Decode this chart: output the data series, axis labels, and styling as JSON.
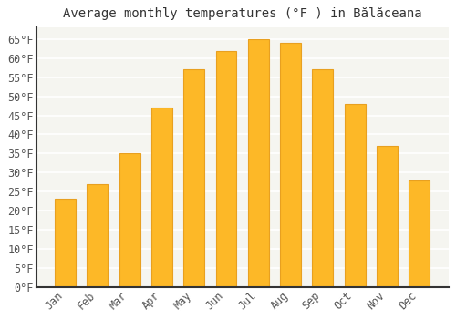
{
  "title": "Average monthly temperatures (°F ) in Bălăceana",
  "months": [
    "Jan",
    "Feb",
    "Mar",
    "Apr",
    "May",
    "Jun",
    "Jul",
    "Aug",
    "Sep",
    "Oct",
    "Nov",
    "Dec"
  ],
  "values": [
    23,
    27,
    35,
    47,
    57,
    62,
    65,
    64,
    57,
    48,
    37,
    28
  ],
  "bar_color": "#FDB827",
  "bar_edge_color": "#E8A020",
  "background_color": "#ffffff",
  "plot_bg_color": "#f5f5f0",
  "grid_color": "#ffffff",
  "spine_color": "#333333",
  "text_color": "#555555",
  "ylim": [
    0,
    68
  ],
  "yticks": [
    0,
    5,
    10,
    15,
    20,
    25,
    30,
    35,
    40,
    45,
    50,
    55,
    60,
    65
  ],
  "title_fontsize": 10,
  "tick_fontsize": 8.5,
  "bar_width": 0.65
}
